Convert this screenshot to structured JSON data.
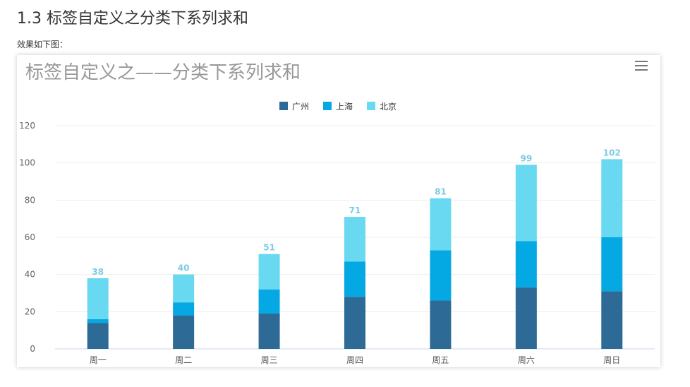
{
  "page": {
    "heading": "1.3 标签自定义之分类下系列求和",
    "intro": "效果如下图："
  },
  "chart_data": {
    "type": "bar",
    "stacked": true,
    "title": "标签自定义之——分类下系列求和",
    "categories": [
      "周一",
      "周二",
      "周三",
      "周四",
      "周五",
      "周六",
      "周日"
    ],
    "series": [
      {
        "name": "广州",
        "color": "#2e6a96",
        "values": [
          14,
          18,
          19,
          28,
          26,
          33,
          31
        ]
      },
      {
        "name": "上海",
        "color": "#04a9e4",
        "values": [
          2,
          7,
          13,
          19,
          27,
          25,
          29
        ]
      },
      {
        "name": "北京",
        "color": "#68d9f1",
        "values": [
          22,
          15,
          19,
          24,
          28,
          41,
          42
        ]
      }
    ],
    "totals": [
      38,
      40,
      51,
      71,
      81,
      99,
      102
    ],
    "ylim": [
      0,
      120
    ],
    "yticks": [
      0,
      20,
      40,
      60,
      80,
      100,
      120
    ],
    "grid": true,
    "legend": "top-center",
    "xlabel": "",
    "ylabel": ""
  }
}
